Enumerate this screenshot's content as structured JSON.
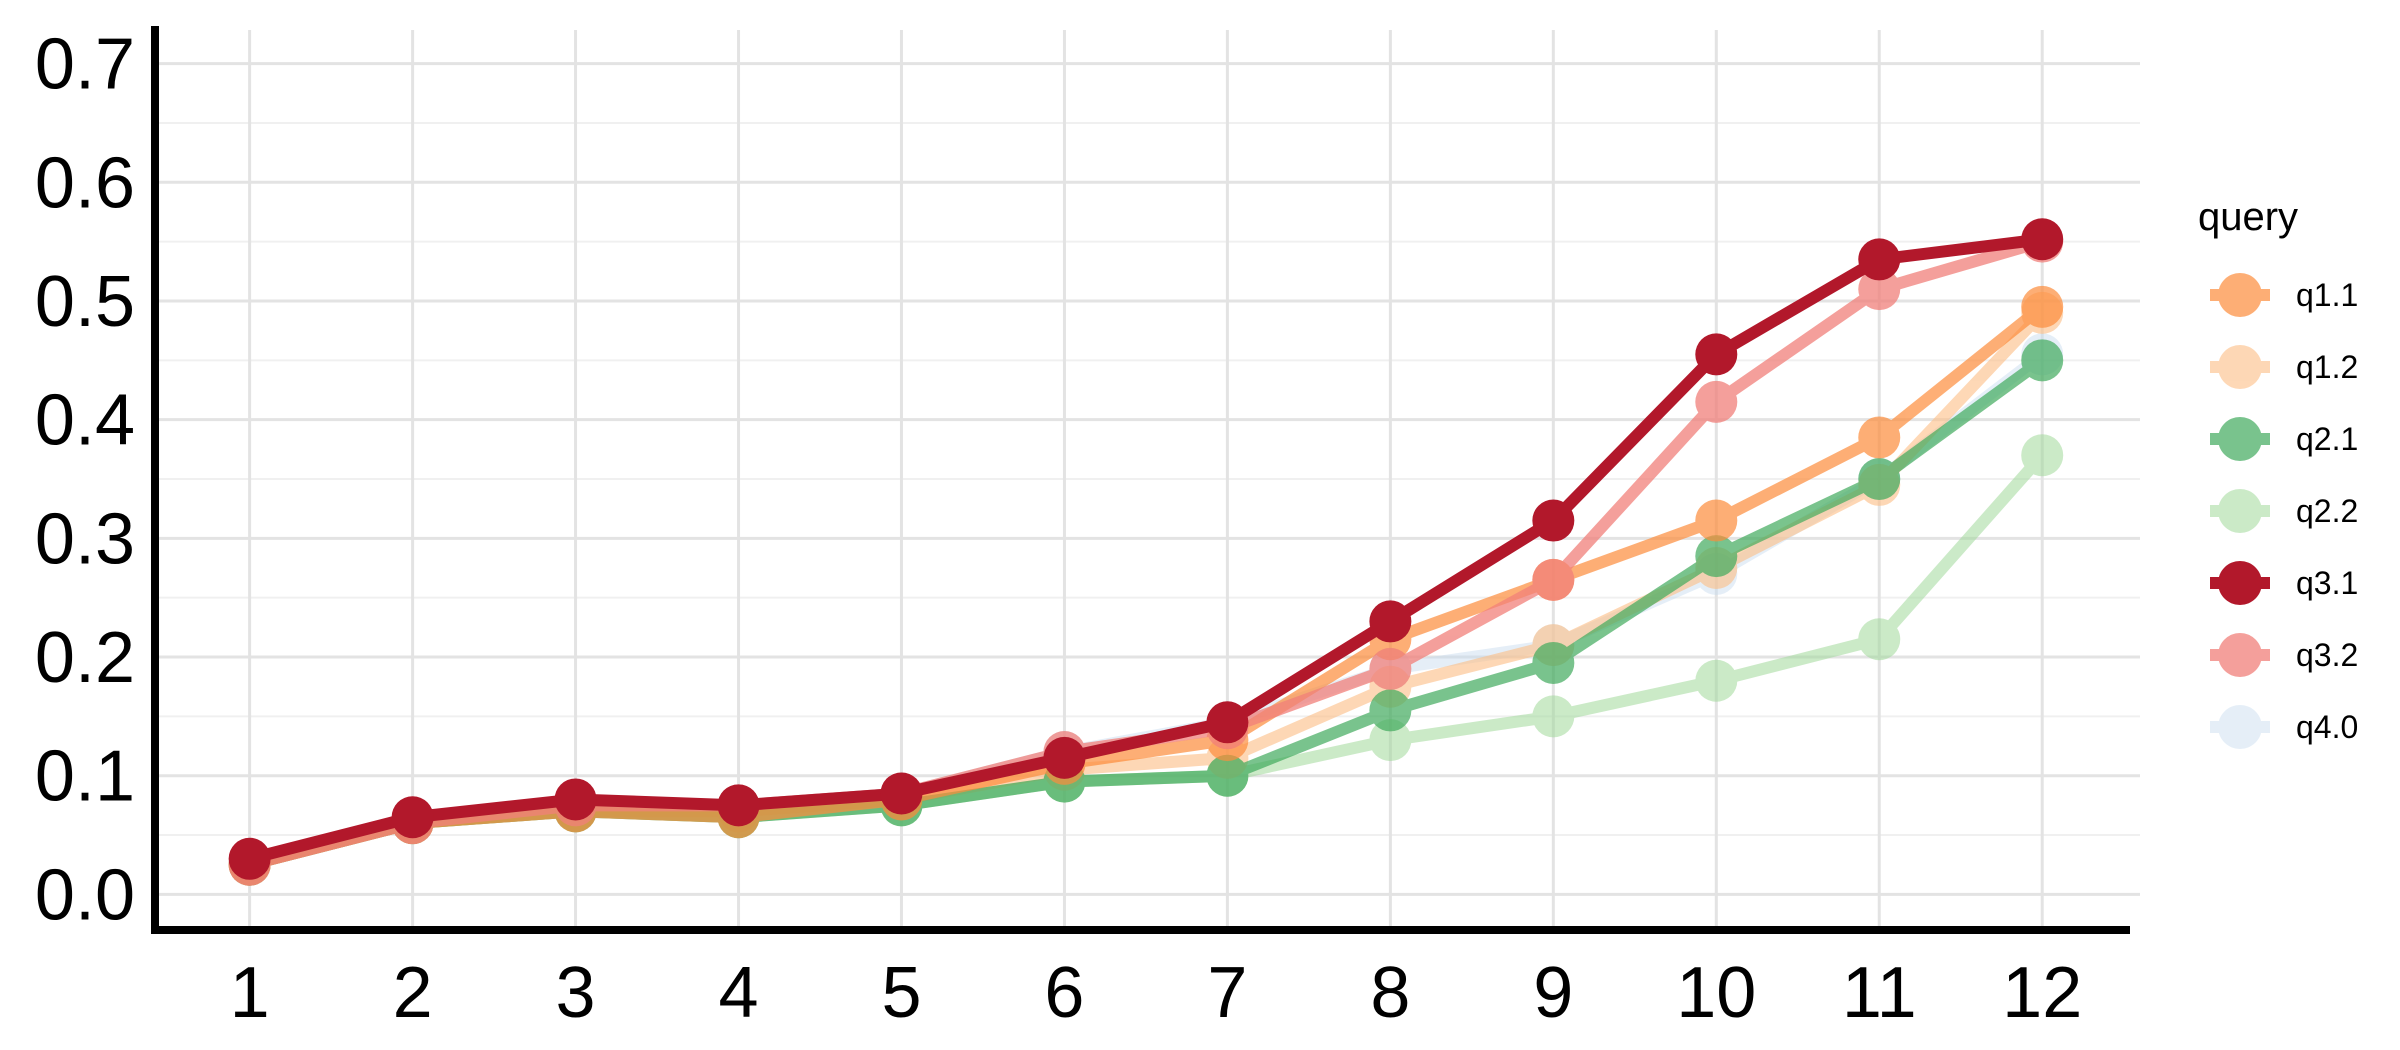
{
  "chart_data": {
    "type": "line",
    "title": "",
    "xlabel": "",
    "ylabel": "",
    "x": [
      1,
      2,
      3,
      4,
      5,
      6,
      7,
      8,
      9,
      10,
      11,
      12
    ],
    "xlim": [
      0.45,
      12.6
    ],
    "ylim": [
      -0.03,
      0.73
    ],
    "y_ticks": [
      0.0,
      0.1,
      0.2,
      0.3,
      0.4,
      0.5,
      0.6,
      0.7
    ],
    "y_tick_labels": [
      "0.0",
      "0.1",
      "0.2",
      "0.3",
      "0.4",
      "0.5",
      "0.6",
      "0.7"
    ],
    "x_tick_labels": [
      "1",
      "2",
      "3",
      "4",
      "5",
      "6",
      "7",
      "8",
      "9",
      "10",
      "11",
      "12"
    ],
    "grid": true,
    "legend": {
      "title": "query",
      "position": "right"
    },
    "series": [
      {
        "name": "q4.0",
        "color": "#c6dbef",
        "alpha": 0.45,
        "values": [
          0.025,
          0.06,
          0.075,
          0.075,
          0.085,
          0.12,
          0.145,
          0.19,
          0.21,
          0.27,
          0.35,
          0.455
        ]
      },
      {
        "name": "q2.2",
        "color": "#a1d99b",
        "alpha": 0.55,
        "values": [
          0.025,
          0.06,
          0.07,
          0.065,
          0.075,
          0.095,
          0.1,
          0.13,
          0.15,
          0.18,
          0.215,
          0.37
        ]
      },
      {
        "name": "q1.2",
        "color": "#fdbe85",
        "alpha": 0.6,
        "values": [
          0.025,
          0.06,
          0.07,
          0.07,
          0.08,
          0.105,
          0.115,
          0.175,
          0.21,
          0.275,
          0.345,
          0.49
        ]
      },
      {
        "name": "q2.1",
        "color": "#41ab5d",
        "alpha": 0.7,
        "values": [
          0.025,
          0.06,
          0.07,
          0.065,
          0.075,
          0.095,
          0.1,
          0.155,
          0.195,
          0.285,
          0.35,
          0.45
        ]
      },
      {
        "name": "q1.1",
        "color": "#fd8d3c",
        "alpha": 0.7,
        "values": [
          0.025,
          0.06,
          0.07,
          0.065,
          0.08,
          0.11,
          0.13,
          0.215,
          0.265,
          0.315,
          0.385,
          0.495
        ]
      },
      {
        "name": "q3.2",
        "color": "#f1807a",
        "alpha": 0.75,
        "values": [
          0.025,
          0.06,
          0.075,
          0.075,
          0.085,
          0.12,
          0.14,
          0.19,
          0.265,
          0.415,
          0.51,
          0.55
        ]
      },
      {
        "name": "q3.1",
        "color": "#b2182b",
        "alpha": 1.0,
        "values": [
          0.03,
          0.065,
          0.08,
          0.075,
          0.085,
          0.115,
          0.145,
          0.23,
          0.315,
          0.455,
          0.535,
          0.552
        ]
      }
    ],
    "legend_order": [
      "q1.1",
      "q1.2",
      "q2.1",
      "q2.2",
      "q3.1",
      "q3.2",
      "q4.0"
    ]
  }
}
